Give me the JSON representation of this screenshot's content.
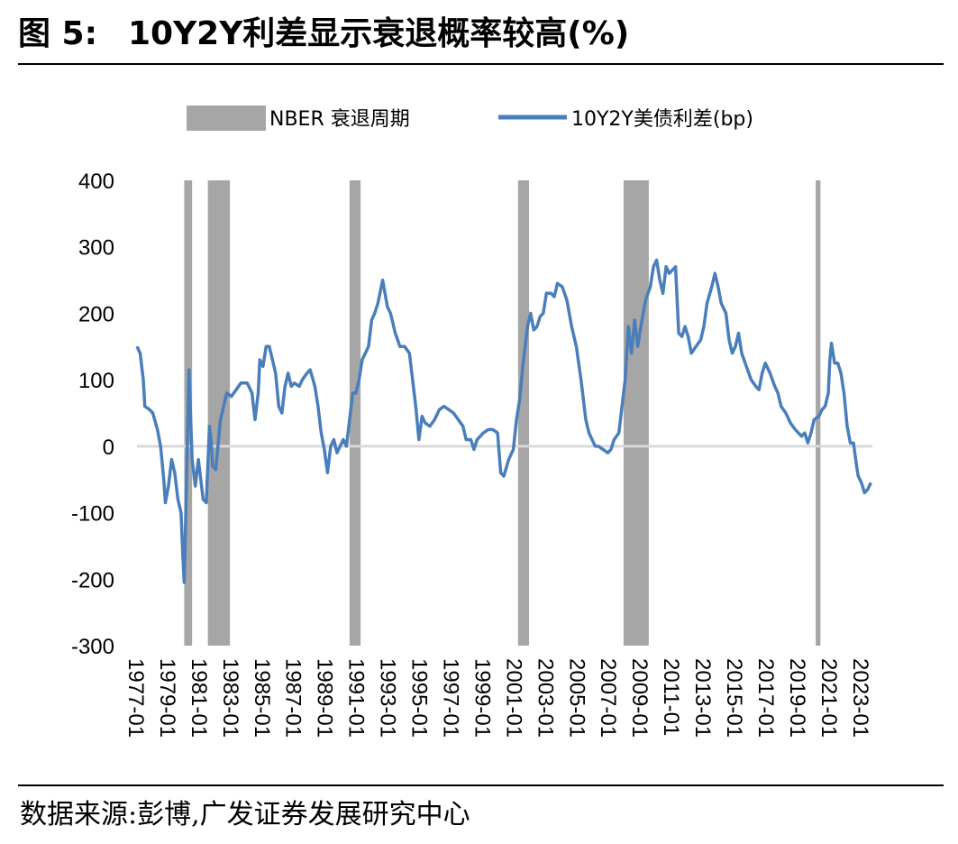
{
  "header": {
    "fig_label": "图 5:",
    "title_text": "10Y2Y利差显示衰退概率较高(%)"
  },
  "footer": {
    "source": "数据来源:彭博,广发证券发展研究中心"
  },
  "colors": {
    "line": "#4a7ebb",
    "recession": "#a6a6a6",
    "zero_line": "#d9d9d9"
  },
  "chart_data": {
    "type": "line",
    "legend": [
      "NBER 衰退周期",
      "10Y2Y美债利差(bp)"
    ],
    "legend_placement": "top",
    "x_range": [
      1977.0,
      2023.7
    ],
    "ylim": [
      -300,
      400
    ],
    "y_ticks": [
      400,
      300,
      200,
      100,
      0,
      -100,
      -200,
      -300
    ],
    "x_ticks": [
      "1977-01",
      "1979-01",
      "1981-01",
      "1983-01",
      "1985-01",
      "1987-01",
      "1989-01",
      "1991-01",
      "1993-01",
      "1995-01",
      "1997-01",
      "1999-01",
      "2001-01",
      "2003-01",
      "2005-01",
      "2007-01",
      "2009-01",
      "2011-01",
      "2013-01",
      "2015-01",
      "2017-01",
      "2019-01",
      "2021-01",
      "2023-01"
    ],
    "grid": false,
    "recessions": [
      {
        "start": 1980.0,
        "end": 1980.5
      },
      {
        "start": 1981.5,
        "end": 1982.9
      },
      {
        "start": 1990.5,
        "end": 1991.2
      },
      {
        "start": 2001.2,
        "end": 2001.9
      },
      {
        "start": 2007.9,
        "end": 2009.5
      },
      {
        "start": 2020.1,
        "end": 2020.4
      }
    ],
    "series": [
      {
        "name": "10Y2Y美债利差(bp)",
        "points": [
          [
            1977.0,
            150
          ],
          [
            1977.2,
            140
          ],
          [
            1977.4,
            100
          ],
          [
            1977.5,
            60
          ],
          [
            1977.8,
            55
          ],
          [
            1978.0,
            50
          ],
          [
            1978.3,
            25
          ],
          [
            1978.5,
            0
          ],
          [
            1978.7,
            -50
          ],
          [
            1978.8,
            -85
          ],
          [
            1979.0,
            -60
          ],
          [
            1979.2,
            -20
          ],
          [
            1979.4,
            -40
          ],
          [
            1979.6,
            -80
          ],
          [
            1979.8,
            -100
          ],
          [
            1979.9,
            -160
          ],
          [
            1980.0,
            -205
          ],
          [
            1980.1,
            -100
          ],
          [
            1980.3,
            115
          ],
          [
            1980.5,
            -20
          ],
          [
            1980.7,
            -60
          ],
          [
            1980.9,
            -20
          ],
          [
            1981.0,
            -40
          ],
          [
            1981.2,
            -80
          ],
          [
            1981.4,
            -85
          ],
          [
            1981.6,
            30
          ],
          [
            1981.7,
            10
          ],
          [
            1981.8,
            -30
          ],
          [
            1982.0,
            -35
          ],
          [
            1982.3,
            40
          ],
          [
            1982.5,
            60
          ],
          [
            1982.7,
            80
          ],
          [
            1983.0,
            75
          ],
          [
            1983.3,
            85
          ],
          [
            1983.6,
            95
          ],
          [
            1984.0,
            95
          ],
          [
            1984.3,
            80
          ],
          [
            1984.5,
            40
          ],
          [
            1984.7,
            80
          ],
          [
            1984.8,
            130
          ],
          [
            1985.0,
            120
          ],
          [
            1985.2,
            150
          ],
          [
            1985.4,
            150
          ],
          [
            1985.6,
            130
          ],
          [
            1985.8,
            110
          ],
          [
            1986.0,
            60
          ],
          [
            1986.2,
            50
          ],
          [
            1986.4,
            90
          ],
          [
            1986.6,
            110
          ],
          [
            1986.8,
            90
          ],
          [
            1987.0,
            95
          ],
          [
            1987.3,
            90
          ],
          [
            1987.5,
            100
          ],
          [
            1987.8,
            110
          ],
          [
            1988.0,
            115
          ],
          [
            1988.3,
            90
          ],
          [
            1988.5,
            60
          ],
          [
            1988.7,
            20
          ],
          [
            1988.9,
            -5
          ],
          [
            1989.1,
            -40
          ],
          [
            1989.3,
            0
          ],
          [
            1989.5,
            10
          ],
          [
            1989.7,
            -10
          ],
          [
            1989.9,
            0
          ],
          [
            1990.1,
            10
          ],
          [
            1990.3,
            0
          ],
          [
            1990.5,
            40
          ],
          [
            1990.7,
            80
          ],
          [
            1990.9,
            80
          ],
          [
            1991.1,
            100
          ],
          [
            1991.3,
            130
          ],
          [
            1991.5,
            140
          ],
          [
            1991.7,
            150
          ],
          [
            1991.9,
            190
          ],
          [
            1992.1,
            200
          ],
          [
            1992.3,
            215
          ],
          [
            1992.6,
            250
          ],
          [
            1992.9,
            210
          ],
          [
            1993.1,
            200
          ],
          [
            1993.4,
            170
          ],
          [
            1993.7,
            150
          ],
          [
            1994.0,
            150
          ],
          [
            1994.3,
            140
          ],
          [
            1994.5,
            100
          ],
          [
            1994.7,
            60
          ],
          [
            1994.9,
            10
          ],
          [
            1995.1,
            45
          ],
          [
            1995.3,
            35
          ],
          [
            1995.6,
            30
          ],
          [
            1995.9,
            40
          ],
          [
            1996.2,
            55
          ],
          [
            1996.5,
            60
          ],
          [
            1996.8,
            55
          ],
          [
            1997.1,
            50
          ],
          [
            1997.4,
            40
          ],
          [
            1997.7,
            30
          ],
          [
            1997.9,
            10
          ],
          [
            1998.2,
            10
          ],
          [
            1998.4,
            -5
          ],
          [
            1998.6,
            10
          ],
          [
            1998.8,
            15
          ],
          [
            1999.0,
            20
          ],
          [
            1999.3,
            25
          ],
          [
            1999.6,
            25
          ],
          [
            1999.9,
            20
          ],
          [
            2000.1,
            -40
          ],
          [
            2000.3,
            -45
          ],
          [
            2000.6,
            -20
          ],
          [
            2000.9,
            -5
          ],
          [
            2001.1,
            40
          ],
          [
            2001.3,
            70
          ],
          [
            2001.5,
            120
          ],
          [
            2001.8,
            180
          ],
          [
            2002.0,
            200
          ],
          [
            2002.2,
            175
          ],
          [
            2002.4,
            180
          ],
          [
            2002.6,
            195
          ],
          [
            2002.8,
            200
          ],
          [
            2003.0,
            230
          ],
          [
            2003.3,
            230
          ],
          [
            2003.5,
            225
          ],
          [
            2003.7,
            245
          ],
          [
            2004.0,
            240
          ],
          [
            2004.3,
            220
          ],
          [
            2004.6,
            180
          ],
          [
            2004.9,
            150
          ],
          [
            2005.2,
            100
          ],
          [
            2005.5,
            40
          ],
          [
            2005.7,
            20
          ],
          [
            2005.9,
            10
          ],
          [
            2006.1,
            0
          ],
          [
            2006.3,
            0
          ],
          [
            2006.6,
            -5
          ],
          [
            2006.9,
            -10
          ],
          [
            2007.1,
            -5
          ],
          [
            2007.3,
            10
          ],
          [
            2007.6,
            20
          ],
          [
            2007.8,
            60
          ],
          [
            2008.0,
            100
          ],
          [
            2008.2,
            180
          ],
          [
            2008.4,
            140
          ],
          [
            2008.6,
            190
          ],
          [
            2008.8,
            150
          ],
          [
            2009.0,
            180
          ],
          [
            2009.3,
            220
          ],
          [
            2009.6,
            240
          ],
          [
            2009.8,
            270
          ],
          [
            2010.0,
            280
          ],
          [
            2010.2,
            250
          ],
          [
            2010.4,
            230
          ],
          [
            2010.6,
            270
          ],
          [
            2010.8,
            260
          ],
          [
            2011.0,
            265
          ],
          [
            2011.2,
            270
          ],
          [
            2011.4,
            170
          ],
          [
            2011.6,
            165
          ],
          [
            2011.8,
            180
          ],
          [
            2012.0,
            165
          ],
          [
            2012.2,
            140
          ],
          [
            2012.5,
            150
          ],
          [
            2012.8,
            160
          ],
          [
            2013.0,
            180
          ],
          [
            2013.2,
            215
          ],
          [
            2013.5,
            240
          ],
          [
            2013.7,
            260
          ],
          [
            2013.9,
            240
          ],
          [
            2014.1,
            215
          ],
          [
            2014.4,
            200
          ],
          [
            2014.6,
            160
          ],
          [
            2014.8,
            140
          ],
          [
            2015.0,
            150
          ],
          [
            2015.2,
            170
          ],
          [
            2015.4,
            140
          ],
          [
            2015.7,
            120
          ],
          [
            2016.0,
            100
          ],
          [
            2016.3,
            90
          ],
          [
            2016.5,
            85
          ],
          [
            2016.7,
            110
          ],
          [
            2016.9,
            125
          ],
          [
            2017.2,
            110
          ],
          [
            2017.5,
            90
          ],
          [
            2017.7,
            80
          ],
          [
            2017.9,
            60
          ],
          [
            2018.2,
            50
          ],
          [
            2018.5,
            35
          ],
          [
            2018.8,
            25
          ],
          [
            2019.0,
            20
          ],
          [
            2019.2,
            15
          ],
          [
            2019.4,
            20
          ],
          [
            2019.6,
            5
          ],
          [
            2019.8,
            20
          ],
          [
            2020.0,
            40
          ],
          [
            2020.3,
            45
          ],
          [
            2020.5,
            55
          ],
          [
            2020.7,
            60
          ],
          [
            2020.9,
            80
          ],
          [
            2021.0,
            130
          ],
          [
            2021.1,
            155
          ],
          [
            2021.3,
            125
          ],
          [
            2021.5,
            125
          ],
          [
            2021.7,
            110
          ],
          [
            2021.9,
            80
          ],
          [
            2022.1,
            30
          ],
          [
            2022.3,
            5
          ],
          [
            2022.5,
            5
          ],
          [
            2022.7,
            -30
          ],
          [
            2022.8,
            -45
          ],
          [
            2023.0,
            -55
          ],
          [
            2023.2,
            -70
          ],
          [
            2023.4,
            -65
          ],
          [
            2023.6,
            -55
          ]
        ]
      }
    ]
  }
}
